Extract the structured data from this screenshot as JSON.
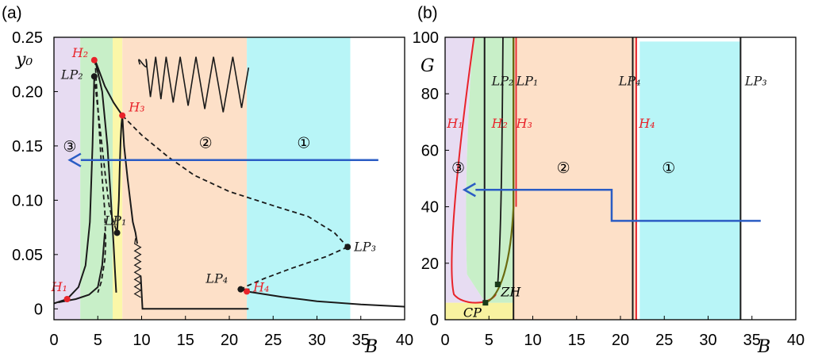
{
  "colors": {
    "purple": "#e7dcf2",
    "green": "#c8efc8",
    "yellow": "#fbf7a8",
    "orange": "#fde0c8",
    "cyan": "#b8f5f7",
    "yellow_b": "#f8f2a0",
    "curve": "#1a1a1a",
    "hopf": "#e8232a",
    "arrow": "#2a5cc4"
  },
  "chart_data": [
    {
      "panel_label": "(a)",
      "type": "line",
      "xlabel": "B",
      "ylabel": "y₀",
      "xlim": [
        0,
        40
      ],
      "ylim": [
        -0.01,
        0.25
      ],
      "x_ticks": [
        0,
        5,
        10,
        15,
        20,
        25,
        30,
        35,
        40
      ],
      "x_tick_labels": [
        "0",
        "5",
        "10",
        "15",
        "20",
        "25",
        "30",
        "35",
        "40"
      ],
      "y_ticks": [
        0,
        0.05,
        0.1,
        0.15,
        0.2,
        0.25
      ],
      "y_tick_labels": [
        "0",
        "0.05",
        "0.10",
        "0.15",
        "0.20",
        "0.25"
      ],
      "regions": [
        {
          "from": 0,
          "to": 3,
          "color": "purple"
        },
        {
          "from": 3,
          "to": 6.7,
          "color": "green"
        },
        {
          "from": 6.7,
          "to": 7.8,
          "color": "yellow"
        },
        {
          "from": 7.8,
          "to": 22,
          "color": "orange"
        },
        {
          "from": 22,
          "to": 33.8,
          "color": "cyan"
        }
      ],
      "region_labels": [
        {
          "text": "③",
          "x": 1.8,
          "y": 0.145
        },
        {
          "text": "②",
          "x": 17.3,
          "y": 0.148
        },
        {
          "text": "①",
          "x": 28.5,
          "y": 0.148
        }
      ],
      "points": [
        {
          "name": "H₂",
          "x": 4.6,
          "y": 0.229,
          "color": "hopf"
        },
        {
          "name": "LP₂",
          "x": 4.6,
          "y": 0.214,
          "color": "curve"
        },
        {
          "name": "H₃",
          "x": 7.8,
          "y": 0.178,
          "color": "hopf"
        },
        {
          "name": "LP₁",
          "x": 7.2,
          "y": 0.07,
          "color": "curve"
        },
        {
          "name": "H₁",
          "x": 1.5,
          "y": 0.009,
          "color": "hopf"
        },
        {
          "name": "LP₄",
          "x": 21.3,
          "y": 0.018,
          "color": "curve"
        },
        {
          "name": "H₄",
          "x": 22.0,
          "y": 0.016,
          "color": "hopf"
        },
        {
          "name": "LP₃",
          "x": 33.5,
          "y": 0.057,
          "color": "curve"
        }
      ],
      "series": [
        {
          "style": "solid",
          "x": [
            0,
            1.5,
            2.8,
            3.6,
            4.1,
            4.4,
            4.6
          ],
          "y": [
            0.005,
            0.009,
            0.02,
            0.04,
            0.08,
            0.15,
            0.214
          ]
        },
        {
          "style": "dashed",
          "x": [
            4.6,
            5.2,
            5.9,
            6.3,
            6.6,
            7.0,
            7.2
          ],
          "y": [
            0.214,
            0.17,
            0.12,
            0.095,
            0.085,
            0.075,
            0.07
          ]
        },
        {
          "style": "solid",
          "x": [
            7.2,
            7.4,
            7.5,
            7.6,
            7.7,
            7.8
          ],
          "y": [
            0.07,
            0.1,
            0.13,
            0.155,
            0.17,
            0.178
          ]
        },
        {
          "style": "dashed",
          "x": [
            7.8,
            10,
            13,
            16,
            20,
            25,
            29,
            32,
            33.5
          ],
          "y": [
            0.178,
            0.16,
            0.14,
            0.123,
            0.108,
            0.095,
            0.085,
            0.07,
            0.057
          ]
        },
        {
          "style": "dashed",
          "x": [
            33.5,
            31,
            27,
            24,
            22,
            21.3
          ],
          "y": [
            0.057,
            0.048,
            0.037,
            0.028,
            0.021,
            0.018
          ]
        },
        {
          "style": "solid",
          "x": [
            21.3,
            22,
            26,
            30,
            35,
            40
          ],
          "y": [
            0.018,
            0.016,
            0.011,
            0.007,
            0.004,
            0.002
          ]
        },
        {
          "style": "solid",
          "x": [
            7.8,
            6.8,
            5.8,
            5.2,
            4.7
          ],
          "y": [
            0.178,
            0.19,
            0.205,
            0.218,
            0.229
          ]
        },
        {
          "style": "solid",
          "x": [
            4.7,
            5.5,
            6.1,
            6.5,
            6.8,
            7.0,
            7.1
          ],
          "y": [
            0.229,
            0.2,
            0.15,
            0.1,
            0.06,
            0.03,
            0.015
          ]
        },
        {
          "style": "solid",
          "x": [
            0.5,
            2.5,
            4.0,
            5.0,
            5.5,
            5.8
          ],
          "y": [
            0.006,
            0.009,
            0.013,
            0.02,
            0.04,
            0.07
          ]
        },
        {
          "style": "dashed",
          "x": [
            4.7,
            4.9,
            5.2,
            5.5,
            5.8,
            5.9,
            5.8,
            5.4,
            5.0
          ],
          "y": [
            0.229,
            0.2,
            0.16,
            0.12,
            0.09,
            0.06,
            0.045,
            0.025,
            0.015
          ]
        },
        {
          "style": "solid",
          "x": [
            7.8,
            8.0,
            8.4,
            8.7,
            9.0,
            9.3,
            9.5
          ],
          "y": [
            0.178,
            0.15,
            0.12,
            0.1,
            0.08,
            0.07,
            0.06
          ]
        },
        {
          "style": "solid",
          "x": [
            9.9,
            10.1,
            22.2
          ],
          "y": [
            0.03,
            0.0,
            0.0
          ]
        },
        {
          "style": "solid",
          "x": [
            21.3,
            22.3
          ],
          "y": [
            0.018,
            0.018
          ]
        }
      ],
      "arrow": {
        "x": [
          37,
          1.8
        ],
        "y": [
          0.137,
          0.137
        ]
      }
    },
    {
      "panel_label": "(b)",
      "type": "line",
      "xlabel": "B",
      "ylabel": "G",
      "xlim": [
        0,
        40
      ],
      "ylim": [
        0,
        100
      ],
      "x_ticks": [
        0,
        5,
        10,
        15,
        20,
        25,
        30,
        35,
        40
      ],
      "x_tick_labels": [
        "0",
        "5",
        "10",
        "15",
        "20",
        "25",
        "30",
        "35",
        "40"
      ],
      "y_ticks": [
        0,
        20,
        40,
        60,
        80,
        100
      ],
      "y_tick_labels": [
        "0",
        "20",
        "40",
        "60",
        "80",
        "100"
      ],
      "line_labels": [
        {
          "text": "LP₂",
          "x": 5.3,
          "y": 83,
          "color": "curve"
        },
        {
          "text": "LP₁",
          "x": 8.1,
          "y": 83,
          "color": "curve"
        },
        {
          "text": "LP₄",
          "x": 19.8,
          "y": 83,
          "color": "curve"
        },
        {
          "text": "LP₃",
          "x": 34.2,
          "y": 83,
          "color": "curve"
        },
        {
          "text": "H₁",
          "x": 0.2,
          "y": 68,
          "color": "hopf"
        },
        {
          "text": "H₂",
          "x": 5.3,
          "y": 68,
          "color": "hopf"
        },
        {
          "text": "H₃",
          "x": 8.1,
          "y": 68,
          "color": "hopf"
        },
        {
          "text": "H₄",
          "x": 22.1,
          "y": 68,
          "color": "hopf"
        }
      ],
      "points": [
        {
          "name": "CP",
          "x": 4.6,
          "y": 6.0
        },
        {
          "name": "ZH",
          "x": 6.0,
          "y": 12.5
        }
      ],
      "arrow": {
        "x": [
          36,
          19,
          19,
          2.2
        ],
        "y": [
          35,
          35,
          46,
          46
        ]
      }
    }
  ]
}
